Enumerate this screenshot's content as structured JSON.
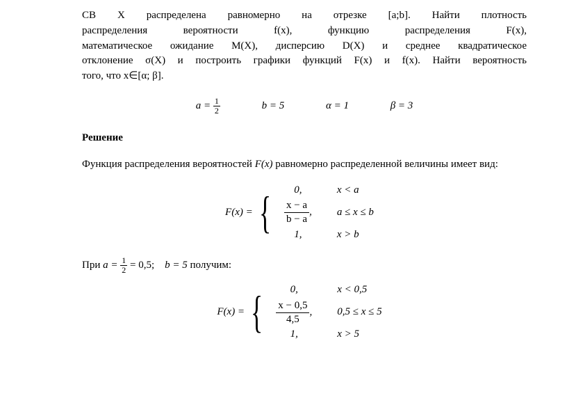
{
  "problem": {
    "line1": "СВ X распределена равномерно на отрезке [a;b]. Найти плотность",
    "line2": "распределения вероятности f(x), функцию распределения F(x),",
    "line3": "математическое ожидание M(X), дисперсию D(X) и среднее квадратическое",
    "line4": "отклонение σ(X) и построить графики функций F(x) и f(x). Найти вероятность",
    "line5_prefix": "того, что x",
    "line5_interval": "∈[α; β].",
    "params": {
      "a_label": "a =",
      "a_num": "1",
      "a_den": "2",
      "b": "b = 5",
      "alpha": "α = 1",
      "beta": "β = 3"
    }
  },
  "solution": {
    "heading": "Решение",
    "intro_prefix": "Функция распределения вероятностей ",
    "intro_fx": "F(x)",
    "intro_suffix": " равномерно распределенной величины имеет вид:",
    "piecewise1": {
      "label": "F(x) =",
      "row1_val": "0,",
      "row1_cond": "x < a",
      "row2_num": "x − a",
      "row2_den": "b − a",
      "row2_comma": ",",
      "row2_cond": "a ≤ x ≤ b",
      "row3_val": "1,",
      "row3_cond": "x > b"
    },
    "pri_prefix": "При ",
    "pri_a_label": "a = ",
    "pri_a_num": "1",
    "pri_a_den": "2",
    "pri_a_eq": " = 0,5;",
    "pri_b": "b = 5",
    "pri_suffix": " получим:",
    "piecewise2": {
      "label": "F(x) =",
      "row1_val": "0,",
      "row1_cond": "x < 0,5",
      "row2_num": "x − 0,5",
      "row2_den": "4,5",
      "row2_comma": ",",
      "row2_cond": "0,5 ≤ x ≤ 5",
      "row3_val": "1,",
      "row3_cond": "x > 5"
    }
  }
}
